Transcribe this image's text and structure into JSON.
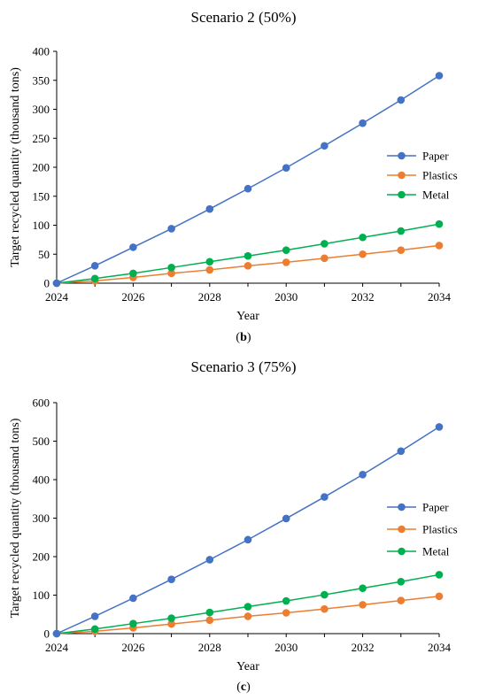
{
  "chart_data": [
    {
      "type": "line",
      "title": "Scenario 2 (50%)",
      "xlabel": "Year",
      "ylabel": "Target recycled quantity (thousand tons)",
      "x": [
        2024,
        2025,
        2026,
        2027,
        2028,
        2029,
        2030,
        2031,
        2032,
        2033,
        2034
      ],
      "xlim": [
        2024,
        2034
      ],
      "xticks": [
        2024,
        2026,
        2028,
        2030,
        2032,
        2034
      ],
      "ylim": [
        0,
        400
      ],
      "yticks": [
        0,
        50,
        100,
        150,
        200,
        250,
        300,
        350,
        400
      ],
      "grid": false,
      "legend_position": "right",
      "caption": {
        "open": "(",
        "letter": "b",
        "close": ")"
      },
      "series": [
        {
          "name": "Paper",
          "color": "#4472C4",
          "values": [
            0,
            30,
            62,
            94,
            128,
            163,
            199,
            237,
            276,
            316,
            358
          ]
        },
        {
          "name": "Plastics",
          "color": "#ED7D31",
          "values": [
            0,
            4,
            10,
            17,
            23,
            30,
            36,
            43,
            50,
            57,
            65
          ]
        },
        {
          "name": "Metal",
          "color": "#00B050",
          "values": [
            0,
            8,
            17,
            27,
            37,
            47,
            57,
            68,
            79,
            90,
            102
          ]
        }
      ]
    },
    {
      "type": "line",
      "title": "Scenario 3 (75%)",
      "xlabel": "Year",
      "ylabel": "Target recycled quantity (thousand tons)",
      "x": [
        2024,
        2025,
        2026,
        2027,
        2028,
        2029,
        2030,
        2031,
        2032,
        2033,
        2034
      ],
      "xlim": [
        2024,
        2034
      ],
      "xticks": [
        2024,
        2026,
        2028,
        2030,
        2032,
        2034
      ],
      "ylim": [
        0,
        600
      ],
      "yticks": [
        0,
        100,
        200,
        300,
        400,
        500,
        600
      ],
      "grid": false,
      "legend_position": "right",
      "caption": {
        "open": "(",
        "letter": "c",
        "close": ")"
      },
      "series": [
        {
          "name": "Paper",
          "color": "#4472C4",
          "values": [
            0,
            45,
            92,
            141,
            192,
            244,
            299,
            355,
            413,
            474,
            537
          ]
        },
        {
          "name": "Plastics",
          "color": "#ED7D31",
          "values": [
            0,
            6,
            15,
            25,
            35,
            45,
            54,
            64,
            75,
            86,
            97
          ]
        },
        {
          "name": "Metal",
          "color": "#00B050",
          "values": [
            0,
            12,
            26,
            40,
            55,
            70,
            85,
            101,
            118,
            135,
            153
          ]
        }
      ]
    }
  ]
}
